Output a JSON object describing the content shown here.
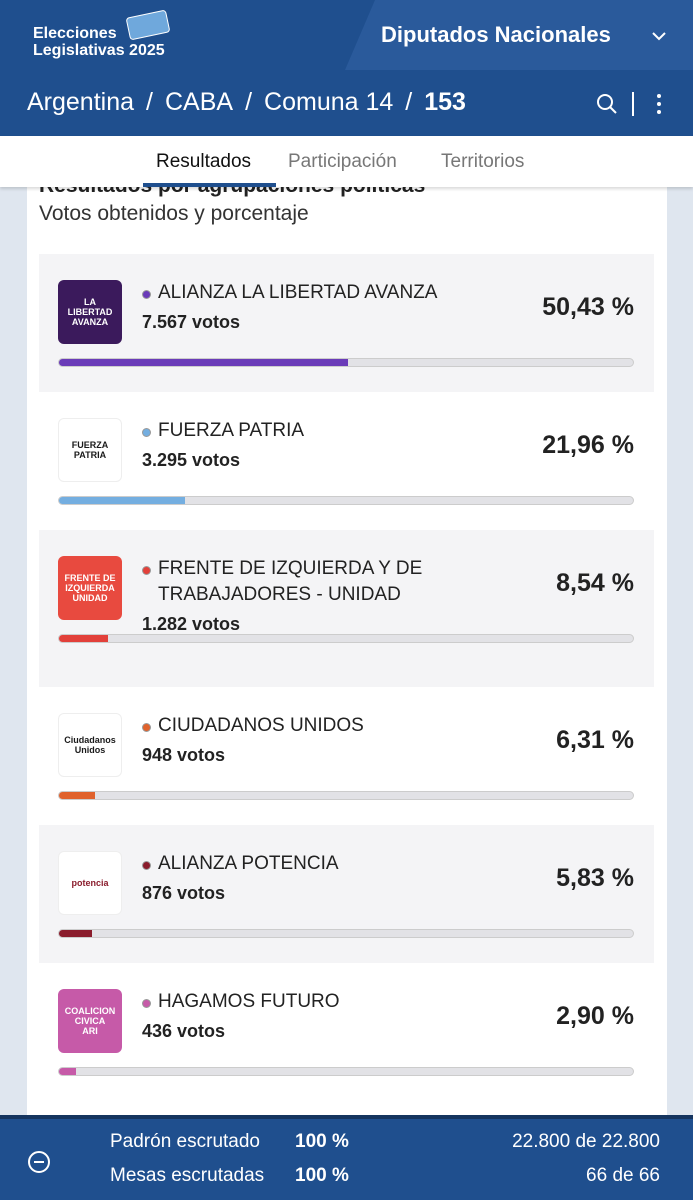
{
  "header": {
    "brand": [
      "Elecciones",
      "Legislativas 2025"
    ],
    "office": "Diputados Nacionales",
    "breadcrumb": [
      "Argentina",
      "CABA",
      "Comuna 14",
      "153"
    ]
  },
  "tabs": [
    "Resultados",
    "Participación",
    "Territorios"
  ],
  "results": {
    "heading": "Resultados por agrupaciones políticas",
    "subheading": "Votos obtenidos y porcentaje",
    "xlim": [
      0,
      100
    ],
    "parties": [
      {
        "name": "ALIANZA LA LIBERTAD AVANZA",
        "votes": "7.567 votos",
        "percent": {
          "value": 50.43,
          "label": "50,43 %"
        },
        "color": "#6a3bb8",
        "logo": [
          "LA",
          "LIBERTAD",
          "AVANZA"
        ],
        "logo_bg": "#3b1a5c"
      },
      {
        "name": "FUERZA PATRIA",
        "votes": "3.295 votos",
        "percent": {
          "value": 21.96,
          "label": "21,96 %"
        },
        "color": "#74aee0",
        "logo": [
          "FUERZA",
          "PATRIA"
        ],
        "logo_bg": "#ffffff"
      },
      {
        "name": "FRENTE DE IZQUIERDA Y DE TRABAJADORES - UNIDAD",
        "votes": "1.282 votos",
        "percent": {
          "value": 8.54,
          "label": "8,54 %"
        },
        "color": "#e2403a",
        "logo": [
          "FRENTE DE",
          "IZQUIERDA",
          "UNIDAD"
        ],
        "logo_bg": "#e84a3f"
      },
      {
        "name": "CIUDADANOS UNIDOS",
        "votes": "948 votos",
        "percent": {
          "value": 6.31,
          "label": "6,31 %"
        },
        "color": "#e0622c",
        "logo": [
          "Ciudadanos",
          "Unidos"
        ],
        "logo_bg": "#ffffff"
      },
      {
        "name": "ALIANZA POTENCIA",
        "votes": "876 votos",
        "percent": {
          "value": 5.83,
          "label": "5,83 %"
        },
        "color": "#8a1c2c",
        "logo": [
          "potencia"
        ],
        "logo_bg": "#ffffff"
      },
      {
        "name": "HAGAMOS FUTURO",
        "votes": "436 votos",
        "percent": {
          "value": 2.9,
          "label": "2,90 %"
        },
        "color": "#c65aa8",
        "logo": [
          "COALICION",
          "CIVICA",
          "ARI"
        ],
        "logo_bg": "#c65aa8"
      }
    ]
  },
  "footer": {
    "rows": [
      {
        "label": "Padrón escrutado",
        "percent": "100 %",
        "count": "22.800 de 22.800"
      },
      {
        "label": "Mesas escrutadas",
        "percent": "100 %",
        "count": "66 de 66"
      }
    ]
  }
}
